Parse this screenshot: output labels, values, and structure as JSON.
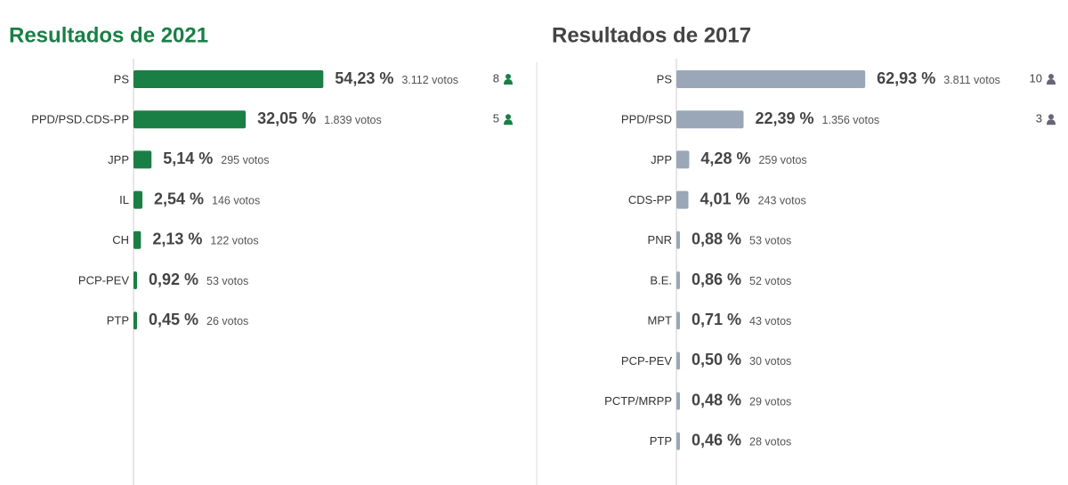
{
  "chart_data": [
    {
      "type": "bar",
      "orientation": "horizontal",
      "title": "Resultados de 2021",
      "title_color": "#1a7f45",
      "color": "#1a7f45",
      "xlim": [
        0,
        60
      ],
      "categories": [
        "PS",
        "PPD/PSD.CDS-PP",
        "JPP",
        "IL",
        "CH",
        "PCP-PEV",
        "PTP"
      ],
      "values": [
        54.23,
        32.05,
        5.14,
        2.54,
        2.13,
        0.92,
        0.45
      ],
      "value_labels": [
        "54,23 %",
        "32,05 %",
        "5,14 %",
        "2,54 %",
        "2,13 %",
        "0,92 %",
        "0,45 %"
      ],
      "votes": [
        3112,
        1839,
        295,
        146,
        122,
        53,
        26
      ],
      "votes_labels": [
        "3.112 votos",
        "1.839 votos",
        "295 votos",
        "146 votos",
        "122 votos",
        "53 votos",
        "26 votos"
      ],
      "seats": [
        8,
        5,
        null,
        null,
        null,
        null,
        null
      ]
    },
    {
      "type": "bar",
      "orientation": "horizontal",
      "title": "Resultados de 2017",
      "title_color": "#444444",
      "color": "#9aa7b8",
      "xlim": [
        0,
        70
      ],
      "categories": [
        "PS",
        "PPD/PSD",
        "JPP",
        "CDS-PP",
        "PNR",
        "B.E.",
        "MPT",
        "PCP-PEV",
        "PCTP/MRPP",
        "PTP"
      ],
      "values": [
        62.93,
        22.39,
        4.28,
        4.01,
        0.88,
        0.86,
        0.71,
        0.5,
        0.48,
        0.46
      ],
      "value_labels": [
        "62,93 %",
        "22,39 %",
        "4,28 %",
        "4,01 %",
        "0,88 %",
        "0,86 %",
        "0,71 %",
        "0,50 %",
        "0,48 %",
        "0,46 %"
      ],
      "votes": [
        3811,
        1356,
        259,
        243,
        53,
        52,
        43,
        30,
        29,
        28
      ],
      "votes_labels": [
        "3.811 votos",
        "1.356 votos",
        "259 votos",
        "243 votos",
        "53 votos",
        "52 votos",
        "43 votos",
        "30 votos",
        "29 votos",
        "28 votos"
      ],
      "seats": [
        10,
        3,
        null,
        null,
        null,
        null,
        null,
        null,
        null,
        null
      ]
    }
  ]
}
